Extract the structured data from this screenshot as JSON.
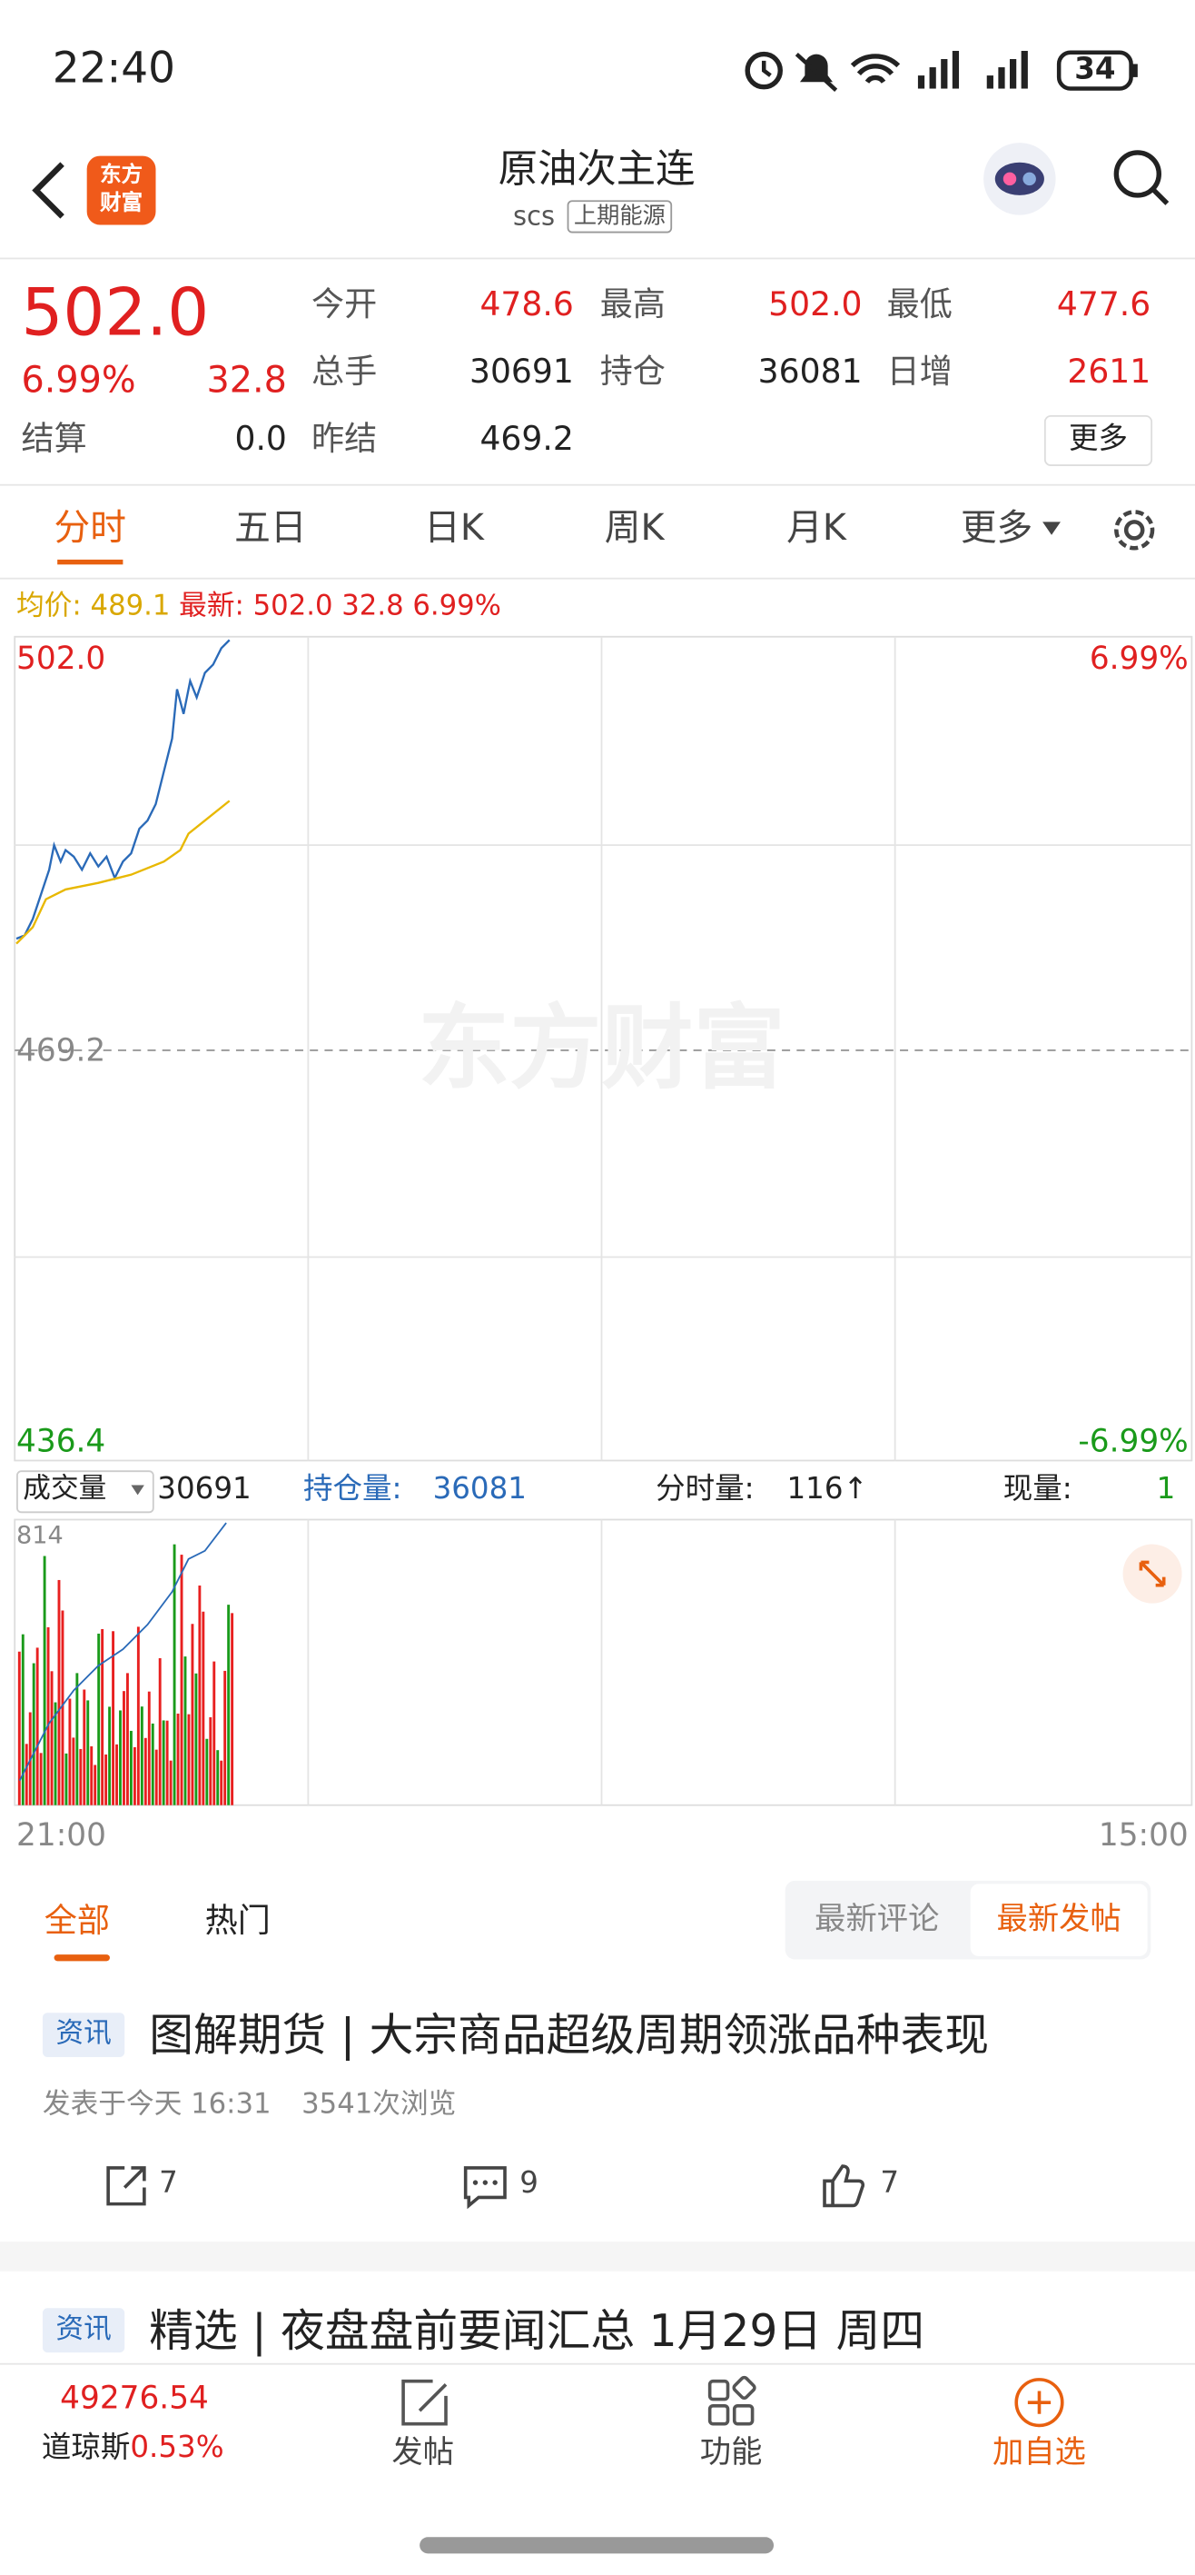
{
  "status_bar": {
    "time": "22:40",
    "battery": "34"
  },
  "header": {
    "logo": [
      "东方",
      "财富"
    ],
    "title": "原油次主连",
    "code": "scs",
    "exchange": "上期能源"
  },
  "quote": {
    "price": "502.0",
    "change_pct": "6.99%",
    "change": "32.8",
    "fields": [
      {
        "label": "今开",
        "value": "478.6"
      },
      {
        "label": "最高",
        "value": "502.0"
      },
      {
        "label": "最低",
        "value": "477.6"
      },
      {
        "label": "总手",
        "value": "30691"
      },
      {
        "label": "持仓",
        "value": "36081"
      },
      {
        "label": "日增",
        "value": "2611"
      },
      {
        "label": "结算",
        "value": "0.0"
      },
      {
        "label": "昨结",
        "value": "469.2"
      }
    ],
    "more": "更多"
  },
  "tabs": [
    "分时",
    "五日",
    "日K",
    "周K",
    "月K",
    "更多"
  ],
  "chart": {
    "avg_label": "均价:",
    "avg": "489.1",
    "latest_label": "最新:",
    "latest": "502.0",
    "latest_change": "32.8",
    "latest_pct": "6.99%",
    "y_top": "502.0",
    "y_mid": "469.2",
    "y_bottom": "436.4",
    "pct_top": "6.99%",
    "pct_bottom": "-6.99%",
    "watermark": "东方财富",
    "vol_label": "成交量",
    "vol": "30691",
    "oi_label": "持仓量:",
    "oi": "36081",
    "tick_label": "分时量:",
    "tick": "116↑",
    "now_label": "现量:",
    "now": "1",
    "vol_max": "814",
    "x_start": "21:00",
    "x_end": "15:00"
  },
  "feed": {
    "tabs": [
      "全部",
      "热门"
    ],
    "sort": [
      "最新评论",
      "最新发帖"
    ],
    "posts": [
      {
        "tag": "资讯",
        "title": "图解期货 | 大宗商品超级周期领涨品种表现",
        "time": "发表于今天 16:31",
        "views": "3541次浏览",
        "shares": "7",
        "comments": "9",
        "likes": "7"
      },
      {
        "tag": "资讯",
        "title": "精选 | 夜盘盘前要闻汇总 1月29日 周四"
      }
    ]
  },
  "bottom_nav": {
    "index_value": "49276.54",
    "index_name": "道琼斯",
    "index_pct": "0.53%",
    "items": [
      "发帖",
      "功能",
      "加自选"
    ]
  }
}
